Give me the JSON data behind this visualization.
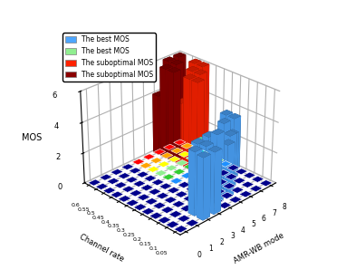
{
  "xlabel": "Channel rate",
  "ylabel": "AMR-WB mode",
  "zlabel": "MOS",
  "amr_modes": [
    0,
    1,
    2,
    3,
    4,
    5,
    6,
    7,
    8
  ],
  "channel_rates": [
    0.05,
    0.1,
    0.15,
    0.2,
    0.25,
    0.3,
    0.35,
    0.4,
    0.45,
    0.5,
    0.55,
    0.6
  ],
  "best_mos_blue": [
    [
      0,
      0,
      0,
      0,
      0,
      0,
      0,
      0,
      0,
      0,
      0,
      0
    ],
    [
      0,
      0,
      0,
      0,
      0,
      0,
      0,
      0,
      0,
      0,
      0,
      0
    ],
    [
      4.0,
      4.1,
      0,
      0,
      0,
      0,
      0,
      0,
      0,
      0,
      0,
      0
    ],
    [
      4.0,
      4.1,
      4.0,
      0,
      0,
      0,
      0,
      0,
      0,
      0,
      0,
      0
    ],
    [
      0,
      4.5,
      4.1,
      0,
      0,
      0,
      0,
      0,
      0,
      0,
      0,
      0
    ],
    [
      0,
      3.5,
      3.0,
      2.5,
      0,
      0,
      0,
      0,
      0,
      0,
      0,
      0
    ],
    [
      0,
      0,
      3.5,
      3.0,
      0,
      0,
      0,
      0,
      0,
      0,
      0,
      0
    ],
    [
      0,
      0,
      0,
      3.0,
      3.5,
      0,
      0,
      0,
      0,
      0,
      0,
      0
    ],
    [
      0,
      0,
      0,
      0,
      3.5,
      3.5,
      0,
      0,
      0,
      0,
      0,
      0
    ]
  ],
  "best_mos_cyan": [
    [
      0,
      0,
      0,
      0,
      0,
      0,
      0,
      0,
      0,
      0,
      0,
      0
    ],
    [
      0,
      0,
      0,
      0,
      0,
      0,
      0,
      0,
      0,
      0,
      0,
      0
    ],
    [
      0,
      0,
      0,
      0,
      0,
      0,
      0,
      0,
      0,
      0,
      0,
      0
    ],
    [
      0,
      0,
      0,
      0,
      0,
      0,
      0,
      0,
      0,
      0,
      0,
      0
    ],
    [
      0,
      0,
      0,
      3.5,
      0,
      0,
      0,
      0,
      0,
      0,
      0,
      0
    ],
    [
      0,
      0,
      0,
      0,
      0,
      0,
      0,
      0,
      0,
      0,
      0,
      0
    ],
    [
      0,
      0,
      0,
      0,
      0,
      0,
      0,
      0,
      0,
      0,
      0,
      0
    ],
    [
      0,
      0,
      0,
      0,
      0,
      0,
      0,
      0,
      0,
      0,
      0,
      0
    ],
    [
      0,
      0,
      0,
      0,
      0,
      0,
      0,
      0,
      0,
      0,
      0,
      0
    ]
  ],
  "subopt_mos_red": [
    [
      0,
      0,
      0,
      0,
      0,
      0,
      0,
      0,
      0,
      0,
      0,
      0
    ],
    [
      0,
      0,
      0,
      0,
      0,
      0,
      0,
      0,
      0,
      0,
      0,
      0
    ],
    [
      0,
      0,
      0,
      0,
      0,
      0,
      0,
      0,
      0,
      0,
      0,
      0
    ],
    [
      0,
      0,
      0,
      0,
      0,
      0,
      0,
      0,
      0,
      0,
      0,
      0
    ],
    [
      0,
      0,
      0,
      0,
      0,
      0,
      0,
      0,
      0,
      0,
      0,
      0
    ],
    [
      0,
      0,
      0,
      0,
      0,
      0,
      0,
      0,
      0,
      0,
      0,
      0
    ],
    [
      0,
      0,
      0,
      0,
      0,
      0,
      6.0,
      6.0,
      4.2,
      0,
      0,
      0
    ],
    [
      0,
      0,
      0,
      0,
      0,
      0,
      0,
      6.0,
      6.0,
      4.0,
      0,
      0
    ],
    [
      0,
      0,
      0,
      0,
      0,
      0,
      0,
      0,
      6.0,
      6.0,
      4.0,
      0
    ]
  ],
  "subopt_mos_darkred": [
    [
      0,
      0,
      0,
      0,
      0,
      0,
      0,
      0,
      0,
      0,
      0,
      0
    ],
    [
      0,
      0,
      0,
      0,
      0,
      0,
      0,
      0,
      0,
      0,
      0,
      0
    ],
    [
      0,
      0,
      0,
      0,
      0,
      0,
      0,
      0,
      0,
      0,
      0,
      0
    ],
    [
      0,
      0,
      0,
      0,
      0,
      0,
      0,
      0,
      0,
      0,
      0,
      0
    ],
    [
      0,
      0,
      0,
      0,
      0,
      0,
      0,
      0,
      0,
      0,
      0,
      0
    ],
    [
      0,
      0,
      0,
      0,
      0,
      0,
      0,
      0,
      0,
      0,
      0,
      0
    ],
    [
      0,
      0,
      0,
      0,
      0,
      0,
      0,
      0,
      0,
      6.0,
      6.0,
      4.0
    ],
    [
      0,
      0,
      0,
      0,
      0,
      0,
      0,
      0,
      0,
      0,
      6.0,
      6.0
    ],
    [
      0,
      0,
      0,
      0,
      0,
      0,
      0,
      0,
      0,
      0,
      0,
      6.0
    ]
  ],
  "floor_colors": {
    "dark_blue": "#00008B",
    "blue": "#1E90FF",
    "green": "#32CD32",
    "light_green": "#90EE90",
    "cyan_light": "#00FFFF",
    "yellow": "#FFFF00",
    "orange": "#FFA500",
    "red": "#FF0000"
  },
  "bar_color_blue": "#4da6ff",
  "bar_color_cyan": "#7FFFD4",
  "bar_color_red": "#FF2200",
  "bar_color_darkred": "#8B0000",
  "legend_labels": [
    "The best MOS",
    "The best MOS",
    "The suboptimal MOS",
    "The suboptimal MOS"
  ],
  "legend_colors": [
    "#4da6ff",
    "#90EE90",
    "#FF2200",
    "#8B0000"
  ],
  "zlim": [
    0,
    6
  ],
  "zticks": [
    0,
    2,
    4,
    6
  ],
  "elev": 28,
  "azim": 225,
  "figsize": [
    3.82,
    3.08
  ],
  "dpi": 100
}
